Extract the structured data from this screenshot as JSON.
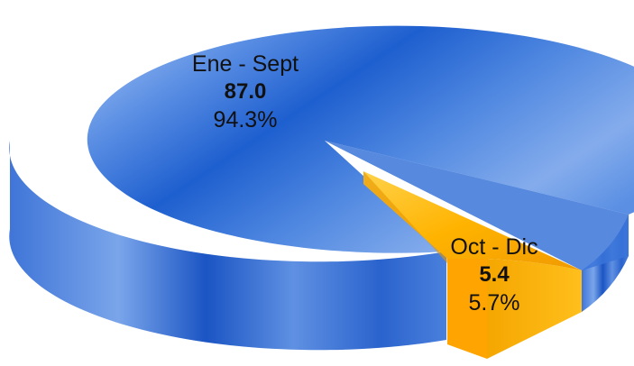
{
  "chart_data": {
    "type": "pie",
    "style": "3d-exploded",
    "slices": [
      {
        "name": "Ene - Sept",
        "value": 87.0,
        "value_label": "87.0",
        "percent": 94.3,
        "percent_label": "94.3%",
        "color": "#2f6fd6"
      },
      {
        "name": "Oct - Dic",
        "value": 5.4,
        "value_label": "5.4",
        "percent": 5.7,
        "percent_label": "5.7%",
        "color": "#f2a500",
        "exploded": true
      }
    ]
  }
}
